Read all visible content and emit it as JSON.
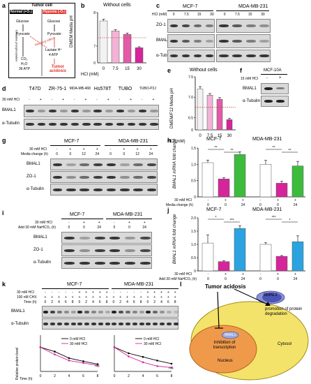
{
  "panel_a": {
    "label": "a",
    "title": "Tumor cell",
    "normal": "Normal (+O₂)",
    "hypoxia": "Hypoxia (-O₂)",
    "glucose": "Glucose",
    "pyruvate": "Pyruvate",
    "ox_phos": "Oxidative phosphorylation",
    "warburg": "Warburg effect",
    "co2": "CO₂",
    "h2o": "H₂O",
    "atp36": "36 ATP",
    "lactate": "Lactate H⁺",
    "atp4": "4 ATP",
    "tumor_acidosis": "Tumor acidosis"
  },
  "panel_b": {
    "label": "b",
    "title": "Without cells",
    "ylabel": "DMEM Media pH",
    "xlabel": "HCl (mM)",
    "colors": [
      "#f2f2f2",
      "#f2b3d6",
      "#e35aa8",
      "#d6259a"
    ],
    "chart_data": {
      "type": "bar",
      "categories": [
        "0",
        "7.5",
        "15",
        "30"
      ],
      "values": [
        7.75,
        7.45,
        7.35,
        6.95
      ],
      "errors": [
        0.05,
        0.04,
        0.04,
        0.03
      ],
      "ylim": [
        0,
        8
      ],
      "yticks": [
        "0",
        "6",
        "7",
        "8"
      ]
    }
  },
  "panel_c": {
    "label": "c",
    "groups": [
      "MCF-7",
      "MDA-MB-231"
    ],
    "row_label": "HCl (mM)",
    "lanes": [
      "0",
      "7.5",
      "15",
      "30",
      "0",
      "7.5",
      "15",
      "30"
    ],
    "blots": [
      "ZO-1",
      "BMAL1",
      "α-Tubulin"
    ]
  },
  "panel_d": {
    "label": "d",
    "lines": [
      "T47D",
      "ZR-75-1",
      "MDA-MB-468",
      "Hs578T",
      "TUBO",
      "TUBO-P2J"
    ],
    "row_label": "30 mM HCl",
    "lanes": [
      "-",
      "+"
    ],
    "blots": [
      "BMAL1",
      "α-Tubulin"
    ]
  },
  "panel_e": {
    "label": "e",
    "title": "Without cells",
    "ylabel": "DMEM/F12 Media pH",
    "xlabel": "HCl (mM)",
    "chart_data": {
      "type": "bar",
      "categories": [
        "0",
        "7.5",
        "15",
        "30"
      ],
      "values": [
        7.2,
        7.05,
        6.95,
        6.45
      ],
      "errors": [
        0.06,
        0.04,
        0.04,
        0.03
      ],
      "ylim": [
        0,
        8
      ],
      "yticks": [
        "0",
        "6.5",
        "7.0",
        "7.5"
      ]
    }
  },
  "panel_f": {
    "label": "f",
    "title": "MCF-10A",
    "row_label": "15 mM HCl",
    "lanes": [
      "-",
      "+"
    ],
    "blots": [
      "BMAL1",
      "α-Tubulin"
    ]
  },
  "panel_g": {
    "label": "g",
    "groups": [
      "MCF-7",
      "MDA-MB-231"
    ],
    "rows": [
      "30 mM HCl",
      "Media change (h)"
    ],
    "hcl": [
      "-",
      "+",
      "+",
      "+",
      "-",
      "+",
      "+",
      "+"
    ],
    "media": [
      "0",
      "0",
      "12",
      "24",
      "0",
      "0",
      "12",
      "24"
    ],
    "blots": [
      "BMAL1",
      "ZO-1",
      "α-Tubulin"
    ]
  },
  "panel_h": {
    "label": "h",
    "groups": [
      "MCF-7",
      "MDA-MB-231"
    ],
    "ylabel": "BMAL1 mRNA fold change",
    "rows": [
      "30 mM HCl",
      "Media change (h)"
    ],
    "hcl": [
      "-",
      "+",
      "+",
      "-",
      "+",
      "+"
    ],
    "media": [
      "0",
      "0",
      "24",
      "0",
      "0",
      "24"
    ],
    "sig": [
      "**",
      "**",
      "**",
      "**"
    ],
    "chart_data": {
      "type": "bar",
      "categories": [
        "MCF-7 0",
        "MCF-7 HCl 0",
        "MCF-7 HCl 24",
        "MDA 0",
        "MDA HCl 0",
        "MDA HCl 24"
      ],
      "values": [
        1.05,
        0.55,
        1.3,
        1.0,
        0.42,
        0.95
      ],
      "errors": [
        0.08,
        0.04,
        0.08,
        0.12,
        0.06,
        0.14
      ],
      "ylim": [
        0,
        1.5
      ],
      "yticks": [
        "0",
        "0.5",
        "1.0",
        "1.5"
      ]
    }
  },
  "panel_i": {
    "label": "i",
    "groups": [
      "MCF-7",
      "MDA-MB-231"
    ],
    "rows": [
      "30 mM HCl",
      "Add 30 mM NaHCO₃ (h)"
    ],
    "hcl": [
      "-",
      "+",
      "+",
      "-",
      "+",
      "+"
    ],
    "add": [
      "0",
      "0",
      "24",
      "0",
      "0",
      "24"
    ],
    "blots": [
      "BMAL1",
      "ZO-1",
      "α-Tubulin"
    ]
  },
  "panel_j": {
    "label": "j",
    "groups": [
      "MCF-7",
      "MDA-MB-231"
    ],
    "ylabel": "BMAL1 mRNA fold change",
    "rows": [
      "30 mM HCl",
      "Add 30 mM NaHCO₃ (h)"
    ],
    "hcl": [
      "-",
      "+",
      "+",
      "-",
      "+",
      "+"
    ],
    "add": [
      "0",
      "0",
      "24",
      "0",
      "0",
      "24"
    ],
    "sig": [
      "*",
      "***",
      "***",
      "*"
    ],
    "chart_data": {
      "type": "bar",
      "categories": [
        "MCF-7 0",
        "MCF-7 HCl 0",
        "MCF-7 HCl 24",
        "MDA 0",
        "MDA HCl 0",
        "MDA HCl 24"
      ],
      "values": [
        1.05,
        0.35,
        1.6,
        1.0,
        0.55,
        1.1
      ],
      "errors": [
        0.3,
        0.04,
        0.1,
        0.06,
        0.03,
        0.22
      ],
      "ylim": [
        0,
        2.0
      ],
      "yticks": [
        "0",
        "0.5",
        "1.0",
        "1.5",
        "2.0"
      ]
    }
  },
  "panel_k": {
    "label": "k",
    "groups": [
      "MCF-7",
      "MDA-MB-231"
    ],
    "rows": [
      "30 mM HCl",
      "100 nM CHX",
      "Time (h)"
    ],
    "hcl": [
      "-",
      "-",
      "-",
      "-",
      "-",
      "+",
      "+",
      "+",
      "+",
      "+",
      "-",
      "-",
      "-",
      "-",
      "-",
      "+",
      "+",
      "+",
      "+",
      "+"
    ],
    "chx": [
      "+",
      "+",
      "+",
      "+",
      "+",
      "+",
      "+",
      "+",
      "+",
      "+",
      "+",
      "+",
      "+",
      "+",
      "+",
      "+",
      "+",
      "+",
      "+",
      "+"
    ],
    "time": [
      "0",
      "2",
      "4",
      "6",
      "8",
      "0",
      "2",
      "4",
      "6",
      "8",
      "0",
      "2",
      "4",
      "6",
      "8",
      "0",
      "2",
      "4",
      "6",
      "8"
    ],
    "blots": [
      "BMAL1",
      "α-Tubulin"
    ],
    "ylabel": "Relative protein level",
    "xlabel": "Time (h)",
    "legend": [
      "0 mM HCl",
      "30 mM HCl"
    ],
    "ns": "n.s",
    "chart_data": [
      {
        "type": "line",
        "x": [
          0,
          2,
          4,
          6,
          8
        ],
        "series": [
          {
            "name": "0 mM HCl",
            "values": [
              1.0,
              0.82,
              0.55,
              0.42,
              0.3
            ]
          },
          {
            "name": "30 mM HCl",
            "values": [
              1.0,
              0.7,
              0.45,
              0.35,
              0.25
            ]
          }
        ],
        "ylim": [
          0,
          1.5
        ]
      },
      {
        "type": "line",
        "x": [
          0,
          2,
          4,
          6,
          8
        ],
        "series": [
          {
            "name": "0 mM HCl",
            "values": [
              1.0,
              0.75,
              0.6,
              0.45,
              0.32
            ]
          },
          {
            "name": "30 mM HCl",
            "values": [
              1.0,
              0.62,
              0.38,
              0.22,
              0.16
            ]
          }
        ],
        "ylim": [
          0,
          1.5
        ]
      }
    ]
  },
  "panel_l": {
    "label": "l",
    "title": "Tumor acidosis",
    "bmal1": "BMAL1",
    "inhibition": "Inhibition of transcription",
    "promotion": "promotion of protein degradation",
    "nucleus": "Nucleus",
    "cytosol": "Cytosol"
  }
}
